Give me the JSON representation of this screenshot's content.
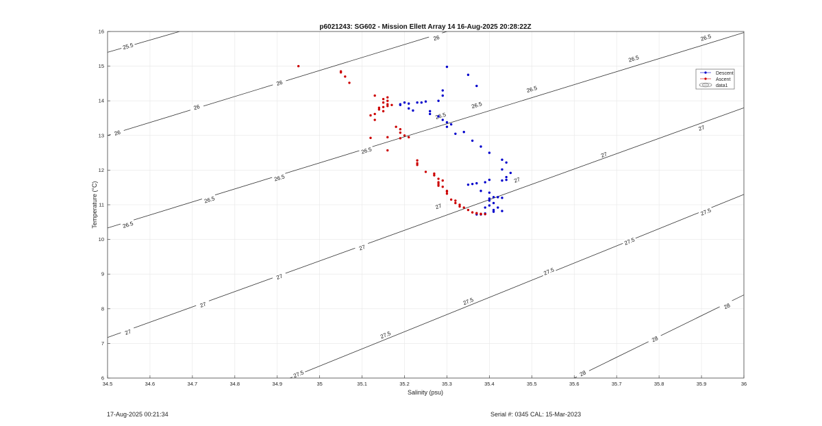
{
  "chart_data": {
    "type": "scatter",
    "title": "p6021243: SG602 - Mission Ellett Array 14 16-Aug-2025 20:28:22Z",
    "xlabel": "Salinity (psu)",
    "ylabel": "Temperature (°C)",
    "xlim": [
      34.5,
      36
    ],
    "ylim": [
      6,
      16
    ],
    "xticks": [
      "34.5",
      "34.6",
      "34.7",
      "34.8",
      "34.9",
      "35",
      "35.1",
      "35.2",
      "35.3",
      "35.4",
      "35.5",
      "35.6",
      "35.7",
      "35.8",
      "35.9",
      "36"
    ],
    "yticks": [
      "6",
      "7",
      "8",
      "9",
      "10",
      "11",
      "12",
      "13",
      "14",
      "15",
      "16"
    ],
    "grid": true,
    "legend_position": "top-right",
    "legend": [
      {
        "name": "Descent",
        "color": "#0000cc",
        "marker": "dot"
      },
      {
        "name": "Ascent",
        "color": "#cc0000",
        "marker": "dot"
      },
      {
        "name": "data1",
        "color": "#555555",
        "marker": "contour"
      }
    ],
    "contours": [
      {
        "label": "25.5",
        "points": [
          [
            34.5,
            15.4
          ],
          [
            34.67,
            16
          ]
        ],
        "label_positions": [
          [
            34.548,
            15.58
          ]
        ]
      },
      {
        "label": "26",
        "points": [
          [
            34.5,
            13.0
          ],
          [
            35.3,
            16
          ]
        ],
        "label_positions": [
          [
            34.523,
            13.08
          ],
          [
            34.71,
            13.82
          ],
          [
            34.905,
            14.52
          ],
          [
            35.275,
            15.82
          ]
        ]
      },
      {
        "label": "26.5",
        "points": [
          [
            34.5,
            10.33
          ],
          [
            36,
            15.97
          ]
        ],
        "label_positions": [
          [
            34.548,
            10.43
          ],
          [
            34.74,
            11.15
          ],
          [
            34.905,
            11.78
          ],
          [
            35.11,
            12.57
          ],
          [
            35.285,
            13.57
          ],
          [
            35.37,
            13.88
          ],
          [
            35.5,
            14.34
          ],
          [
            35.74,
            15.22
          ],
          [
            35.91,
            15.83
          ]
        ]
      },
      {
        "label": "27",
        "points": [
          [
            34.5,
            7.17
          ],
          [
            36,
            13.8
          ]
        ],
        "label_positions": [
          [
            34.548,
            7.33
          ],
          [
            34.725,
            8.12
          ],
          [
            34.905,
            8.93
          ],
          [
            35.1,
            9.77
          ],
          [
            35.28,
            10.96
          ],
          [
            35.465,
            11.72
          ],
          [
            35.67,
            12.45
          ],
          [
            35.9,
            13.22
          ]
        ]
      },
      {
        "label": "27.5",
        "points": [
          [
            34.93,
            6
          ],
          [
            36,
            11.3
          ]
        ],
        "label_positions": [
          [
            34.95,
            6.12
          ],
          [
            35.155,
            7.25
          ],
          [
            35.35,
            8.22
          ],
          [
            35.54,
            9.08
          ],
          [
            35.73,
            9.95
          ],
          [
            35.91,
            10.8
          ]
        ]
      },
      {
        "label": "28",
        "points": [
          [
            35.6,
            6
          ],
          [
            36,
            8.4
          ]
        ],
        "label_positions": [
          [
            35.62,
            6.14
          ],
          [
            35.79,
            7.13
          ],
          [
            35.96,
            8.08
          ]
        ]
      }
    ],
    "series": [
      {
        "name": "Descent",
        "color": "#0000cc",
        "points": [
          [
            35.3,
            14.98
          ],
          [
            35.35,
            14.75
          ],
          [
            35.37,
            14.43
          ],
          [
            35.29,
            14.3
          ],
          [
            35.29,
            14.15
          ],
          [
            35.28,
            14.0
          ],
          [
            35.25,
            13.98
          ],
          [
            35.24,
            13.95
          ],
          [
            35.23,
            13.95
          ],
          [
            35.21,
            13.92
          ],
          [
            35.2,
            13.95
          ],
          [
            35.19,
            13.9
          ],
          [
            35.19,
            13.88
          ],
          [
            35.21,
            13.78
          ],
          [
            35.22,
            13.72
          ],
          [
            35.26,
            13.7
          ],
          [
            35.26,
            13.62
          ],
          [
            35.28,
            13.55
          ],
          [
            35.29,
            13.45
          ],
          [
            35.3,
            13.38
          ],
          [
            35.31,
            13.32
          ],
          [
            35.3,
            13.25
          ],
          [
            35.34,
            13.1
          ],
          [
            35.32,
            13.05
          ],
          [
            35.36,
            12.85
          ],
          [
            35.38,
            12.68
          ],
          [
            35.4,
            12.5
          ],
          [
            35.43,
            12.3
          ],
          [
            35.44,
            12.22
          ],
          [
            35.43,
            12.02
          ],
          [
            35.45,
            11.92
          ],
          [
            35.44,
            11.8
          ],
          [
            35.44,
            11.72
          ],
          [
            35.43,
            11.7
          ],
          [
            35.4,
            11.72
          ],
          [
            35.39,
            11.65
          ],
          [
            35.37,
            11.62
          ],
          [
            35.36,
            11.6
          ],
          [
            35.35,
            11.58
          ],
          [
            35.38,
            11.4
          ],
          [
            35.4,
            11.35
          ],
          [
            35.41,
            11.22
          ],
          [
            35.4,
            11.18
          ],
          [
            35.42,
            11.22
          ],
          [
            35.43,
            11.2
          ],
          [
            35.4,
            11.12
          ],
          [
            35.41,
            11.05
          ],
          [
            35.4,
            10.98
          ],
          [
            35.39,
            10.92
          ],
          [
            35.42,
            10.92
          ],
          [
            35.41,
            10.85
          ],
          [
            35.41,
            10.8
          ],
          [
            35.43,
            10.82
          ],
          [
            35.39,
            10.75
          ],
          [
            35.39,
            10.73
          ],
          [
            35.38,
            10.72
          ],
          [
            35.37,
            10.72
          ]
        ]
      },
      {
        "name": "Ascent",
        "color": "#cc0000",
        "points": [
          [
            34.95,
            15.0
          ],
          [
            35.05,
            14.85
          ],
          [
            35.05,
            14.82
          ],
          [
            35.06,
            14.7
          ],
          [
            35.07,
            14.52
          ],
          [
            35.13,
            14.15
          ],
          [
            35.16,
            14.1
          ],
          [
            35.15,
            14.05
          ],
          [
            35.16,
            14.0
          ],
          [
            35.15,
            13.95
          ],
          [
            35.16,
            13.9
          ],
          [
            35.17,
            13.88
          ],
          [
            35.16,
            13.85
          ],
          [
            35.15,
            13.82
          ],
          [
            35.14,
            13.8
          ],
          [
            35.14,
            13.75
          ],
          [
            35.13,
            13.62
          ],
          [
            35.12,
            13.58
          ],
          [
            35.13,
            13.45
          ],
          [
            35.15,
            13.7
          ],
          [
            35.18,
            13.25
          ],
          [
            35.19,
            13.18
          ],
          [
            35.19,
            13.08
          ],
          [
            35.2,
            13.0
          ],
          [
            35.21,
            12.95
          ],
          [
            35.16,
            12.95
          ],
          [
            35.12,
            12.93
          ],
          [
            35.19,
            12.92
          ],
          [
            35.16,
            12.57
          ],
          [
            35.23,
            12.28
          ],
          [
            35.23,
            12.2
          ],
          [
            35.23,
            12.15
          ],
          [
            35.25,
            11.95
          ],
          [
            35.27,
            11.9
          ],
          [
            35.27,
            11.85
          ],
          [
            35.28,
            11.75
          ],
          [
            35.29,
            11.7
          ],
          [
            35.28,
            11.65
          ],
          [
            35.28,
            11.6
          ],
          [
            35.28,
            11.55
          ],
          [
            35.29,
            11.52
          ],
          [
            35.3,
            11.4
          ],
          [
            35.3,
            11.38
          ],
          [
            35.3,
            11.32
          ],
          [
            35.31,
            11.15
          ],
          [
            35.32,
            11.12
          ],
          [
            35.32,
            11.05
          ],
          [
            35.33,
            11.0
          ],
          [
            35.33,
            10.95
          ],
          [
            35.34,
            10.92
          ],
          [
            35.35,
            10.85
          ],
          [
            35.36,
            10.78
          ],
          [
            35.37,
            10.76
          ],
          [
            35.37,
            10.75
          ],
          [
            35.38,
            10.74
          ],
          [
            35.38,
            10.73
          ],
          [
            35.39,
            10.73
          ]
        ]
      }
    ]
  },
  "footer": {
    "timestamp": "17-Aug-2025 00:21:34",
    "serial_cal": "Serial #: 0345  CAL: 15-Mar-2023"
  }
}
